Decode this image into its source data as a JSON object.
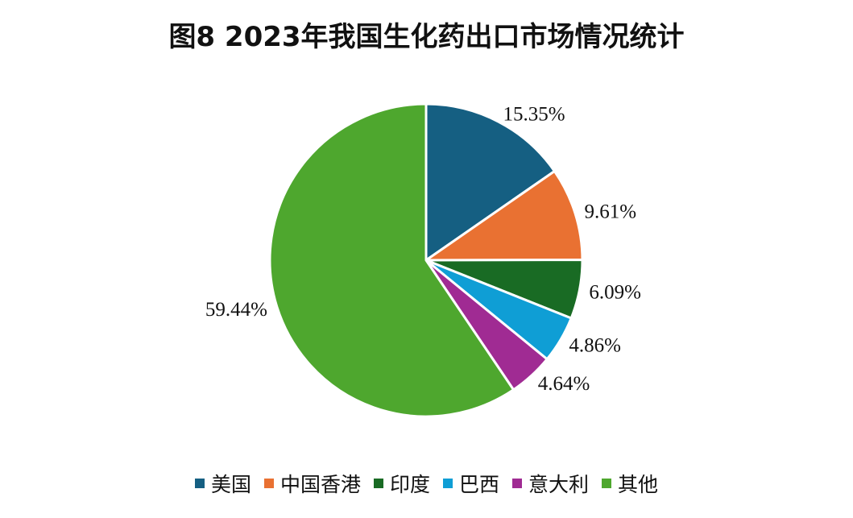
{
  "title": "图8  2023年我国生化药出口市场情况统计",
  "chart_data": {
    "type": "pie",
    "title": "图8  2023年我国生化药出口市场情况统计",
    "categories": [
      "美国",
      "中国香港",
      "印度",
      "巴西",
      "意大利",
      "其他"
    ],
    "values": [
      15.35,
      9.61,
      6.09,
      4.86,
      4.64,
      59.44
    ],
    "value_labels": [
      "15.35%",
      "9.61%",
      "6.09%",
      "4.86%",
      "4.64%",
      "59.44%"
    ],
    "colors": [
      "#155f82",
      "#e97132",
      "#196b24",
      "#0f9ed5",
      "#a02b93",
      "#4ea72e"
    ],
    "start_angle_deg": 0,
    "direction": "clockwise",
    "legend_position": "bottom"
  }
}
